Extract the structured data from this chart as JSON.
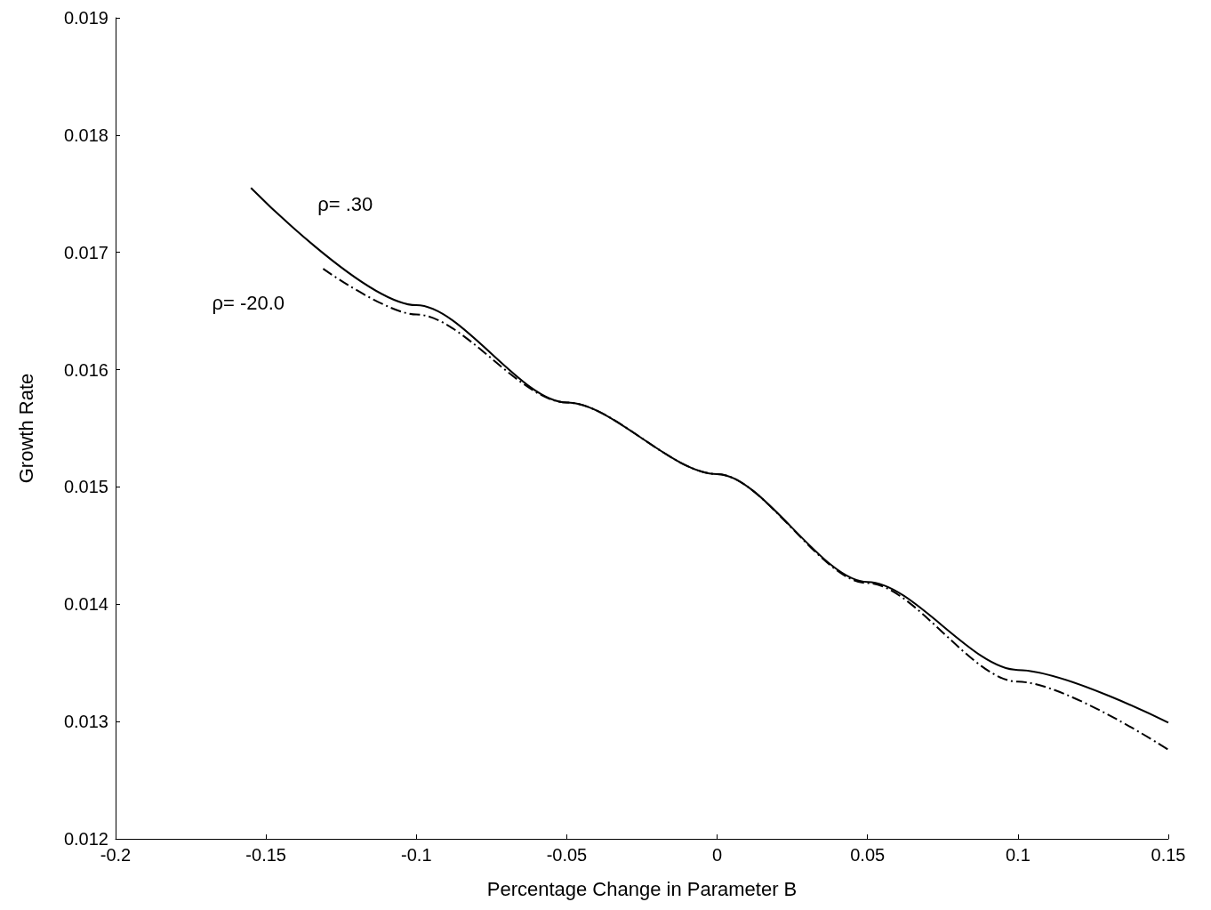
{
  "chart_data": {
    "type": "line",
    "xlabel": "Percentage Change in Parameter B",
    "ylabel": "Growth Rate",
    "xlim": [
      -0.2,
      0.15
    ],
    "xticks": [
      -0.2,
      -0.15,
      -0.1,
      -0.05,
      0,
      0.05,
      0.1,
      0.15
    ],
    "ylim": [
      0.012,
      0.019
    ],
    "yticks": [
      0.012,
      0.013,
      0.014,
      0.015,
      0.016,
      0.017,
      0.018,
      0.019
    ],
    "marker": "none",
    "series": [
      {
        "name": "ρ= .30",
        "color": "#000000",
        "line_style": "solid",
        "x": [
          -0.155,
          -0.1,
          -0.05,
          0,
          0.05,
          0.1,
          0.15
        ],
        "values": [
          0.01755,
          0.01655,
          0.01572,
          0.01511,
          0.01419,
          0.01344,
          0.01299
        ]
      },
      {
        "name": "ρ= -20.0",
        "color": "#000000",
        "line_style": "dashed",
        "x": [
          -0.131,
          -0.1,
          -0.05,
          0,
          0.05,
          0.1,
          0.15
        ],
        "values": [
          0.01686,
          0.01647,
          0.01572,
          0.01511,
          0.01418,
          0.01334,
          0.01276
        ]
      }
    ]
  }
}
